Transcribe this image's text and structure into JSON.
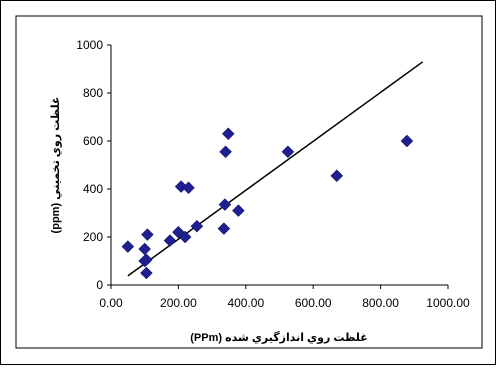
{
  "chart_data": {
    "type": "scatter",
    "xlabel": "غلظت روي اندازگيري شده (PPm)",
    "ylabel": "غلظت روي تخميني (ppm)",
    "xlim": [
      0,
      1000
    ],
    "ylim": [
      0,
      1000
    ],
    "x_ticks": [
      "0.00",
      "200.00",
      "400.00",
      "600.00",
      "800.00",
      "1000.00"
    ],
    "y_ticks": [
      "0",
      "200",
      "400",
      "600",
      "800",
      "1000"
    ],
    "grid": false,
    "marker": "diamond",
    "marker_color": "#1f1f8f",
    "points": [
      {
        "x": 50,
        "y": 160
      },
      {
        "x": 100,
        "y": 150
      },
      {
        "x": 100,
        "y": 100
      },
      {
        "x": 105,
        "y": 105
      },
      {
        "x": 105,
        "y": 50
      },
      {
        "x": 108,
        "y": 210
      },
      {
        "x": 175,
        "y": 185
      },
      {
        "x": 200,
        "y": 220
      },
      {
        "x": 208,
        "y": 410
      },
      {
        "x": 220,
        "y": 200
      },
      {
        "x": 230,
        "y": 405
      },
      {
        "x": 255,
        "y": 245
      },
      {
        "x": 335,
        "y": 235
      },
      {
        "x": 338,
        "y": 335
      },
      {
        "x": 340,
        "y": 555
      },
      {
        "x": 348,
        "y": 630
      },
      {
        "x": 378,
        "y": 310
      },
      {
        "x": 525,
        "y": 555
      },
      {
        "x": 670,
        "y": 455
      },
      {
        "x": 878,
        "y": 600
      }
    ],
    "trendline": {
      "x": [
        50,
        925
      ],
      "y": [
        38,
        930
      ]
    }
  }
}
